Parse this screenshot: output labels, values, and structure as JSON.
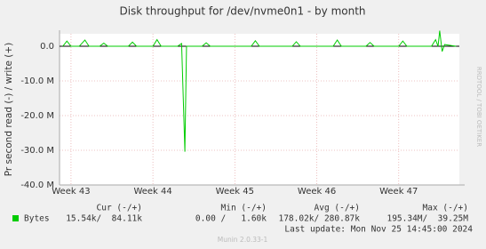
{
  "chart_data": {
    "type": "line",
    "title": "Disk throughput for /dev/nvme0n1 - by month",
    "y_label": "Pr second read (-) / write (+)",
    "watermark": "RRDTOOL / TOBI OETIKER",
    "x": [
      42.9,
      42.95,
      43.0,
      43.1,
      43.17,
      43.22,
      43.35,
      43.4,
      43.45,
      43.7,
      43.75,
      43.8,
      44.0,
      44.05,
      44.1,
      44.3,
      44.35,
      44.39,
      44.41,
      44.6,
      44.65,
      44.7,
      45.2,
      45.25,
      45.3,
      45.7,
      45.75,
      45.8,
      46.2,
      46.25,
      46.3,
      46.6,
      46.65,
      46.7,
      47.0,
      47.05,
      47.1,
      47.4,
      47.45,
      47.48,
      47.5,
      47.53,
      47.56,
      47.7
    ],
    "series": [
      {
        "name": "Bytes",
        "color": "#00cc00",
        "values": [
          0,
          1500000,
          0,
          0,
          1800000,
          0,
          0,
          900000,
          0,
          0,
          1200000,
          0,
          0,
          1900000,
          0,
          0,
          800000,
          -30400000,
          0,
          0,
          1000000,
          0,
          0,
          1600000,
          0,
          0,
          1300000,
          0,
          0,
          1800000,
          0,
          0,
          1100000,
          0,
          0,
          1500000,
          0,
          0,
          1900000,
          0,
          4500000,
          -1500000,
          500000,
          0
        ]
      }
    ],
    "xlim": [
      42.86,
      47.74
    ],
    "xticks": [
      {
        "value": 43,
        "label": "Week 43"
      },
      {
        "value": 44,
        "label": "Week 44"
      },
      {
        "value": 45,
        "label": "Week 45"
      },
      {
        "value": 46,
        "label": "Week 46"
      },
      {
        "value": 47,
        "label": "Week 47"
      }
    ],
    "ylim": [
      -40000000,
      3600000
    ],
    "yticks": [
      {
        "value": 0,
        "label": "0.0"
      },
      {
        "value": -10000000,
        "label": "-10.0 M"
      },
      {
        "value": -20000000,
        "label": "-20.0 M"
      },
      {
        "value": -30000000,
        "label": "-30.0 M"
      },
      {
        "value": -40000000,
        "label": "-40.0 M"
      }
    ],
    "grid": true,
    "legend_table": {
      "headers": [
        "Cur (-/+)",
        "Min (-/+)",
        "Avg (-/+)",
        "Max (-/+)"
      ],
      "rows": [
        [
          "Bytes",
          "15.54k/  84.11k",
          "0.00 /   1.60k",
          "178.02k/ 280.87k",
          "195.34M/  39.25M"
        ]
      ]
    },
    "last_update": "Last update: Mon Nov 25 14:45:00 2024",
    "footer": "Munin 2.0.33-1"
  }
}
